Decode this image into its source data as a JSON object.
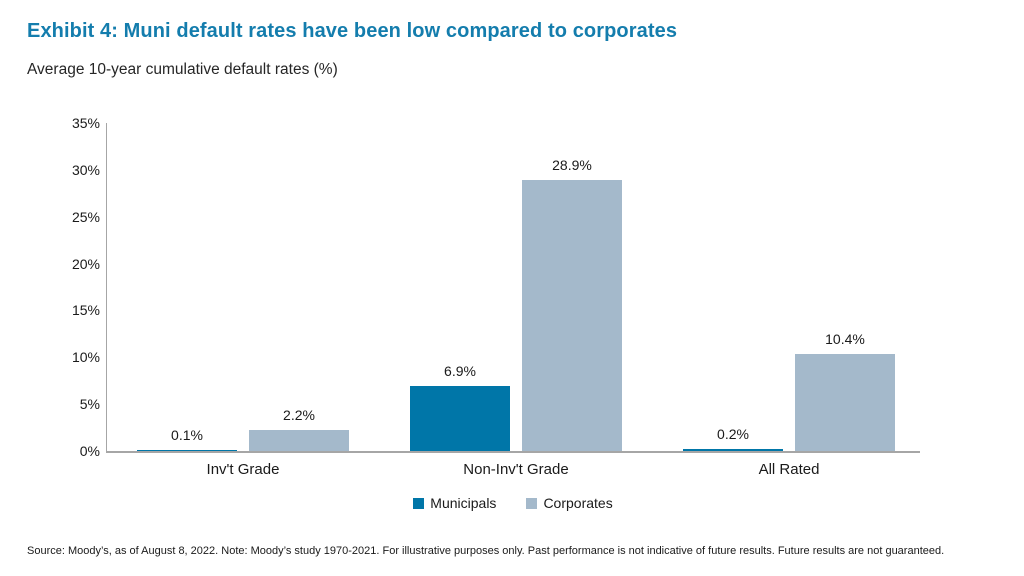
{
  "header": {
    "title": "Exhibit 4: Muni default rates have been low compared to corporates",
    "subtitle": "Average 10-year cumulative default rates (%)"
  },
  "chart_data": {
    "type": "bar",
    "title": "Exhibit 4: Muni default rates have been low compared to corporates",
    "subtitle": "Average 10-year cumulative default rates (%)",
    "categories": [
      "Inv't Grade",
      "Non-Inv't Grade",
      "All Rated"
    ],
    "series": [
      {
        "name": "Municipals",
        "color": "#0076a8",
        "values": [
          0.1,
          6.9,
          0.2
        ]
      },
      {
        "name": "Corporates",
        "color": "#a4b9cb",
        "values": [
          2.2,
          28.9,
          10.4
        ]
      }
    ],
    "xlabel": "",
    "ylabel": "Average 10-year cumulative default rates (%)",
    "ylim": [
      0,
      35
    ],
    "ytick_step": 5,
    "ytick_suffix": "%",
    "value_label_suffix": "%",
    "grid": false,
    "legend_position": "bottom-center",
    "axis_color": "#a6a6a6",
    "label_color": "#1a1a1a"
  },
  "colors": {
    "title_accent": "#147dad"
  },
  "footer": {
    "source": "Source: Moody’s, as of August 8, 2022. Note: Moody’s study 1970-2021. For illustrative purposes only. Past performance is not indicative of future results. Future results are not guaranteed."
  }
}
